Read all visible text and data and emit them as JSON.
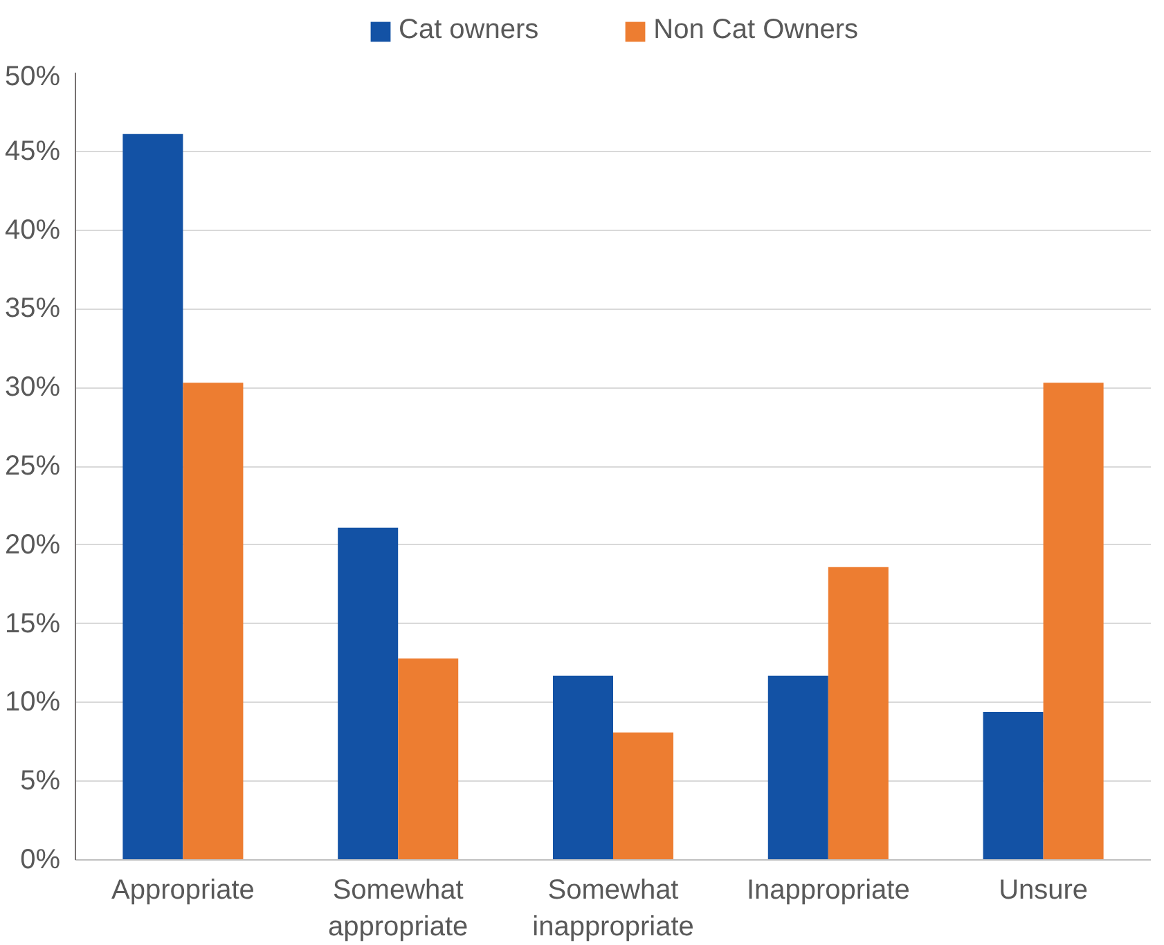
{
  "chart_data": {
    "type": "bar",
    "categories": [
      "Appropriate",
      "Somewhat appropriate",
      "Somewhat inappropriate",
      "Inappropriate",
      "Unsure"
    ],
    "series": [
      {
        "name": "Cat owners",
        "color": "#1352a5",
        "values": [
          46.1,
          21.1,
          11.7,
          11.7,
          9.4
        ]
      },
      {
        "name": "Non Cat Owners",
        "color": "#ed7d31",
        "values": [
          30.3,
          12.8,
          8.1,
          18.6,
          30.3
        ]
      }
    ],
    "ylim": [
      0,
      50
    ],
    "yticks": [
      {
        "value": 0,
        "label": "0%"
      },
      {
        "value": 5,
        "label": "5%"
      },
      {
        "value": 10,
        "label": "10%"
      },
      {
        "value": 15,
        "label": "15%"
      },
      {
        "value": 20,
        "label": "20%"
      },
      {
        "value": 25,
        "label": "25%"
      },
      {
        "value": 30,
        "label": "30%"
      },
      {
        "value": 35,
        "label": "35%"
      },
      {
        "value": 40,
        "label": "40%"
      },
      {
        "value": 45,
        "label": "45%"
      },
      {
        "value": 50,
        "label": "50%"
      }
    ],
    "grid": "y",
    "legend": "top"
  }
}
